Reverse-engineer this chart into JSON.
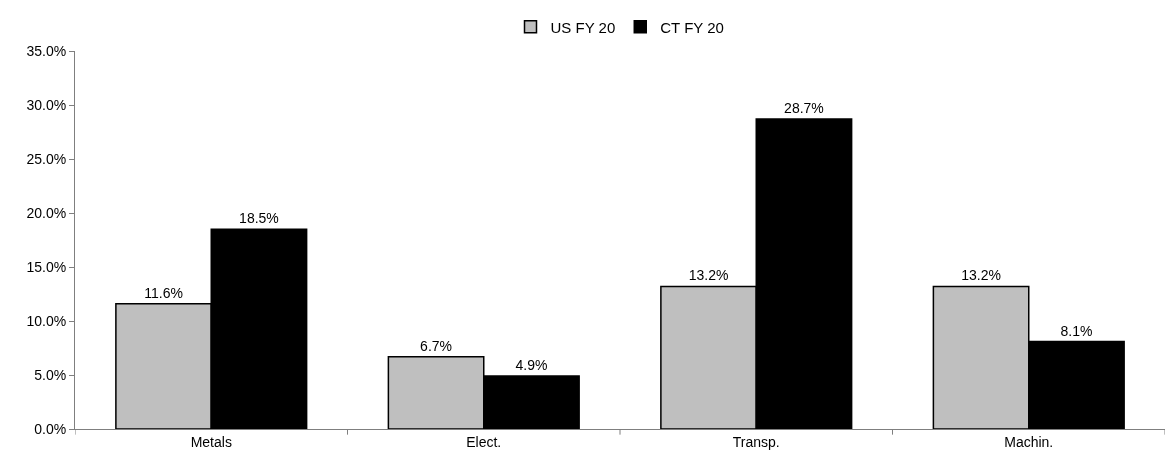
{
  "chart_data": {
    "type": "bar",
    "categories": [
      "Metals",
      "Elect.",
      "Transp.",
      "Machin."
    ],
    "series": [
      {
        "name": "US FY 20",
        "color": "#bfbfbf",
        "values": [
          11.6,
          6.7,
          13.2,
          13.2
        ],
        "value_labels": [
          "11.6%",
          "6.7%",
          "13.2%",
          "13.2%"
        ]
      },
      {
        "name": "CT FY 20",
        "color": "#000000",
        "values": [
          18.5,
          4.9,
          28.7,
          8.1
        ],
        "value_labels": [
          "18.5%",
          "4.9%",
          "28.7%",
          "8.1%"
        ]
      }
    ],
    "ylim": [
      0,
      35
    ],
    "yticks": [
      {
        "value": 0,
        "label": "0.0%"
      },
      {
        "value": 5,
        "label": "5.0%"
      },
      {
        "value": 10,
        "label": "10.0%"
      },
      {
        "value": 15,
        "label": "15.0%"
      },
      {
        "value": 20,
        "label": "20.0%"
      },
      {
        "value": 25,
        "label": "25.0%"
      },
      {
        "value": 30,
        "label": "30.0%"
      },
      {
        "value": 35,
        "label": "35.0%"
      }
    ],
    "legend": "top"
  }
}
